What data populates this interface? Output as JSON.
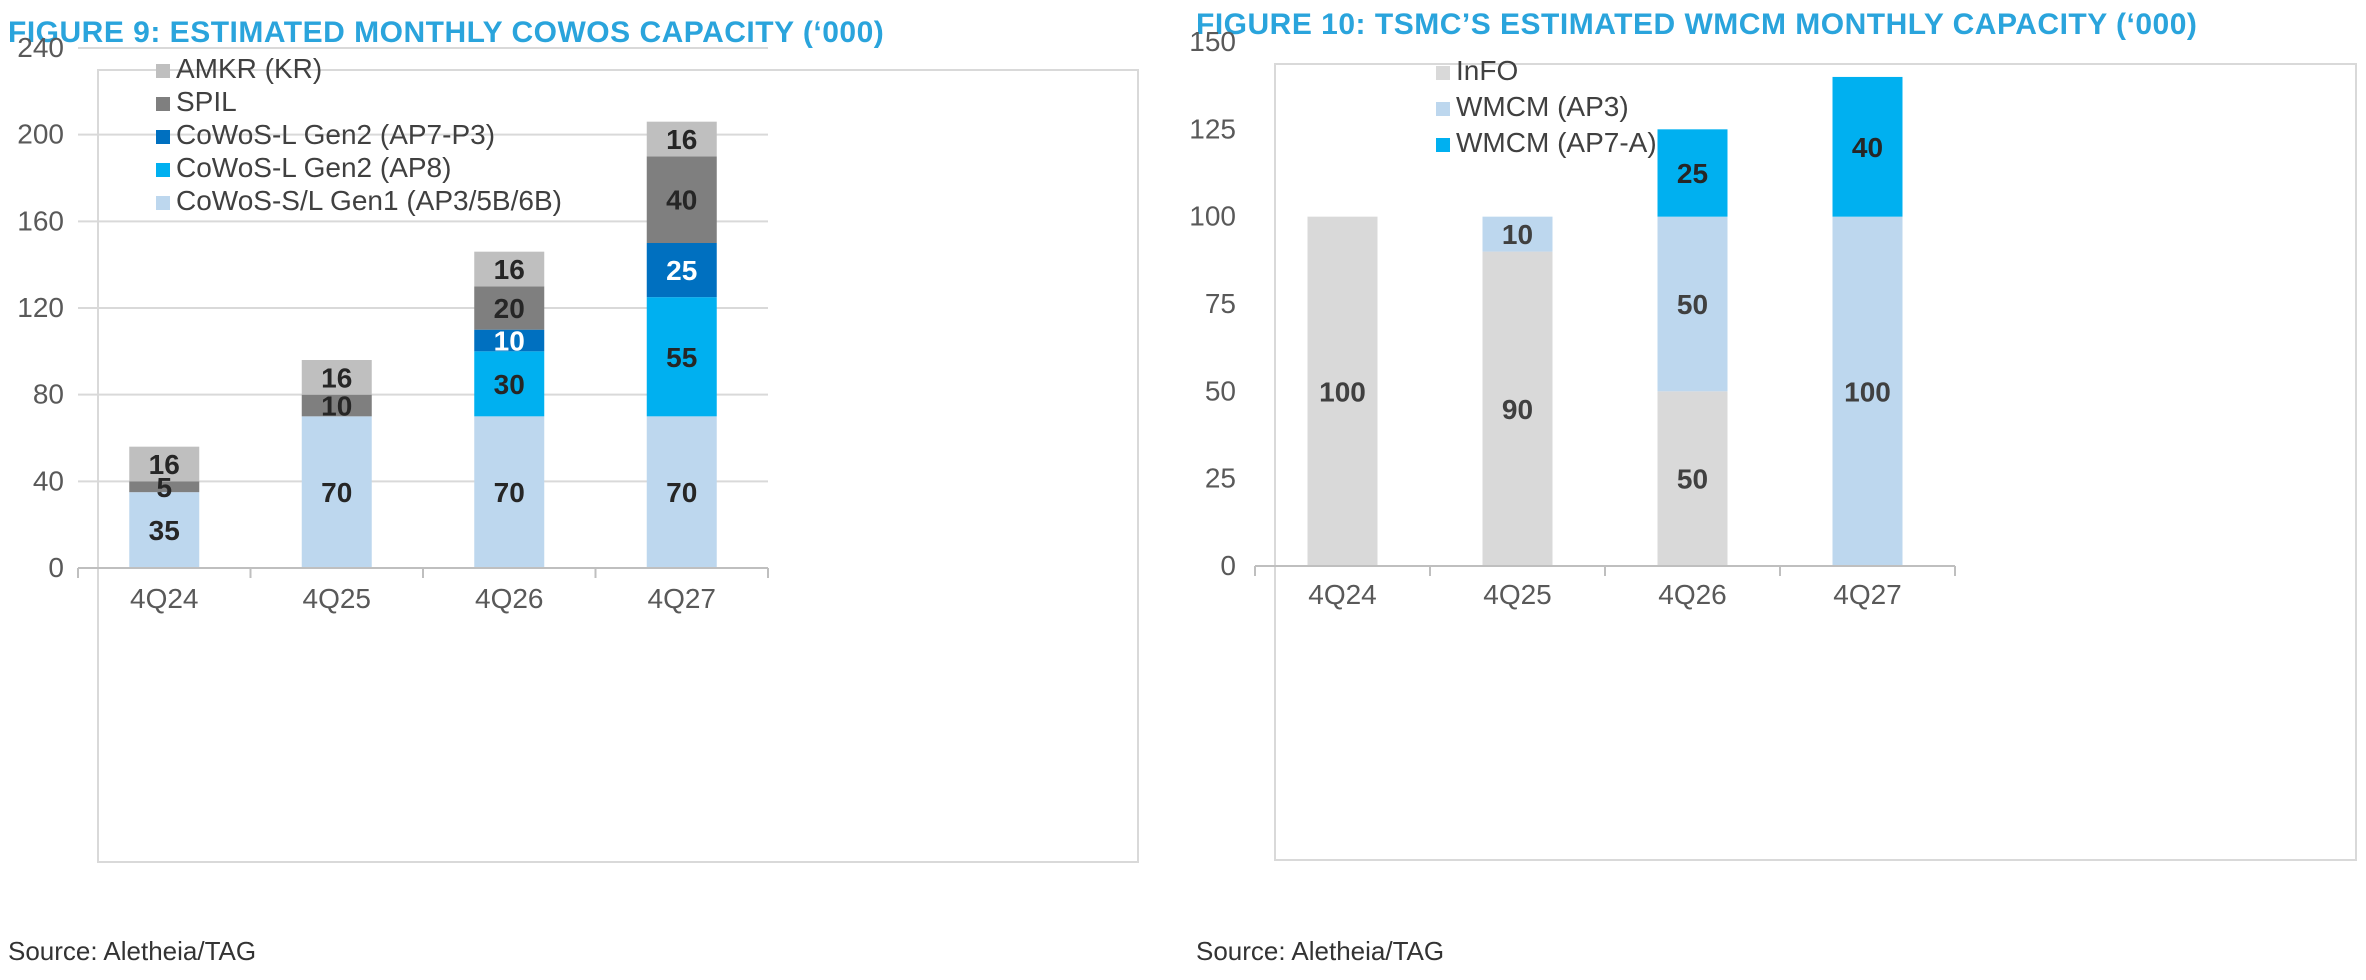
{
  "chart_data": [
    {
      "type": "bar",
      "stacked": true,
      "title": "FIGURE 9: ESTIMATED MONTHLY COWOS CAPACITY (‘000)",
      "source": "Source: Aletheia/TAG",
      "categories": [
        "4Q24",
        "4Q25",
        "4Q26",
        "4Q27"
      ],
      "ylim": [
        0,
        240
      ],
      "yticks": [
        0,
        40,
        80,
        120,
        160,
        200,
        240
      ],
      "ytick_labels": [
        "0",
        "40",
        "80",
        "120",
        "160",
        "200",
        "240"
      ],
      "grid": true,
      "legend_position": "top-left",
      "series": [
        {
          "name": "CoWoS-S/L Gen1 (AP3/5B/6B)",
          "values": [
            35,
            70,
            70,
            70
          ],
          "labels": [
            "35",
            "70",
            "70",
            "70"
          ],
          "color": "#bdd7ee",
          "label_color": "#262626"
        },
        {
          "name": "CoWoS-L Gen2 (AP8)",
          "values": [
            0,
            0,
            30,
            55
          ],
          "labels": [
            "",
            "",
            "30",
            "55"
          ],
          "color": "#00b0f0",
          "label_color": "#262626"
        },
        {
          "name": "CoWoS-L Gen2 (AP7-P3)",
          "values": [
            0,
            0,
            10,
            25
          ],
          "labels": [
            "",
            "",
            "10",
            "25"
          ],
          "color": "#0070c0",
          "label_color": "#ffffff"
        },
        {
          "name": "SPIL",
          "values": [
            5,
            10,
            20,
            40
          ],
          "labels": [
            "5",
            "10",
            "20",
            "40"
          ],
          "color": "#7f7f7f",
          "label_color": "#262626"
        },
        {
          "name": "AMKR (KR)",
          "values": [
            16,
            16,
            16,
            16
          ],
          "labels": [
            "16",
            "16",
            "16",
            "16"
          ],
          "color": "#bfbfbf",
          "label_color": "#262626"
        }
      ],
      "legend_order": [
        "AMKR (KR)",
        "SPIL",
        "CoWoS-L Gen2 (AP7-P3)",
        "CoWoS-L Gen2 (AP8)",
        "CoWoS-S/L Gen1 (AP3/5B/6B)"
      ]
    },
    {
      "type": "bar",
      "stacked": true,
      "title": "FIGURE 10:  TSMC’S ESTIMATED WMCM MONTHLY CAPACITY (‘000)",
      "source": "Source: Aletheia/TAG",
      "categories": [
        "4Q24",
        "4Q25",
        "4Q26",
        "4Q27"
      ],
      "ylim": [
        0,
        150
      ],
      "yticks": [
        0,
        25,
        50,
        75,
        100,
        125,
        150
      ],
      "ytick_labels": [
        "0",
        "25",
        "50",
        "75",
        "100",
        "125",
        "150"
      ],
      "grid": false,
      "legend_position": "top-left",
      "series": [
        {
          "name": "InFO",
          "values": [
            100,
            90,
            50,
            0
          ],
          "labels": [
            "100",
            "90",
            "50",
            ""
          ],
          "color": "#d9d9d9",
          "label_color": "#404040"
        },
        {
          "name": "WMCM (AP3)",
          "values": [
            0,
            10,
            50,
            100
          ],
          "labels": [
            "",
            "10",
            "50",
            "100"
          ],
          "color": "#bdd7ee",
          "label_color": "#404040"
        },
        {
          "name": "WMCM (AP7-A)",
          "values": [
            0,
            0,
            25,
            40
          ],
          "labels": [
            "",
            "",
            "25",
            "40"
          ],
          "color": "#00b0f0",
          "label_color": "#262626"
        }
      ],
      "legend_order": [
        "InFO",
        "WMCM (AP3)",
        "WMCM (AP7-A)"
      ]
    }
  ]
}
